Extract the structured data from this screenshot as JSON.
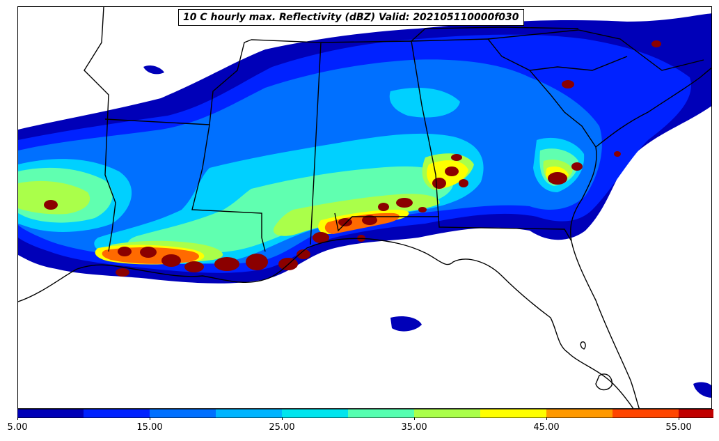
{
  "title": "10 C hourly max. Reflectivity (dBZ) Valid: 202105110000f030",
  "colorbar": {
    "colors": [
      "#0000b8",
      "#0022ff",
      "#0070ff",
      "#00b4ff",
      "#00e5ee",
      "#55ffb0",
      "#aaff4a",
      "#ffff00",
      "#ff9900",
      "#ff4500",
      "#c00000"
    ],
    "extend_color": "#c00000",
    "tick_labels": [
      "5.00",
      "15.00",
      "25.00",
      "35.00",
      "45.00",
      "55.00"
    ]
  },
  "palette": {
    "l1": "#0000b8",
    "l2": "#0022ff",
    "l3": "#0070ff",
    "l4": "#00d0ff",
    "l5": "#60ffb0",
    "l6": "#aaff4a",
    "l7": "#ffff00",
    "l8": "#ff6a00",
    "l9": "#8b0000"
  }
}
